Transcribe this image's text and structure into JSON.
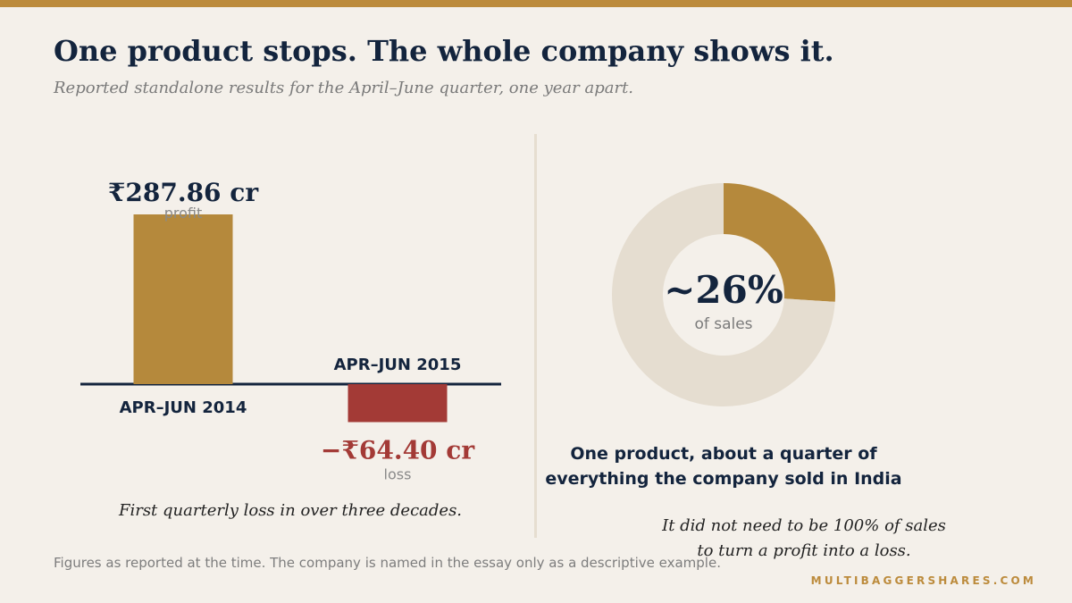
{
  "header": {
    "title": "One product stops. The whole company shows it.",
    "subtitle": "Reported standalone results for the April–June quarter, one year apart."
  },
  "colors": {
    "accent": "#bc8b3c",
    "loss": "#a33a36",
    "navy": "#13243d",
    "track": "#e5ddd0",
    "background": "#f4f0ea"
  },
  "chart_data": [
    {
      "type": "bar",
      "categories": [
        "APR–JUN 2014",
        "APR–JUN 2015"
      ],
      "values": [
        287.86,
        -64.4
      ],
      "value_labels": [
        "₹287.86 cr",
        "−₹64.40 cr"
      ],
      "value_sublabels": [
        "profit",
        "loss"
      ],
      "bar_colors": [
        "#b5893c",
        "#a33a36"
      ],
      "caption": "First quarterly loss in over three decades."
    },
    {
      "type": "pie",
      "style": "donut",
      "values": [
        26,
        74
      ],
      "colors": [
        "#b5893c",
        "#e5ddd0"
      ],
      "center_label": "~26%",
      "center_sublabel": "of sales",
      "heading_lines": [
        "One product, about a quarter of",
        "everything the company sold in India"
      ],
      "note_lines": [
        "It did not need to be 100% of sales",
        "to turn a profit into a loss."
      ]
    }
  ],
  "footer": {
    "note": "Figures as reported at the time. The company is named in the essay only as a descriptive example.",
    "brand": "MULTIBAGGERSHARES.COM"
  }
}
